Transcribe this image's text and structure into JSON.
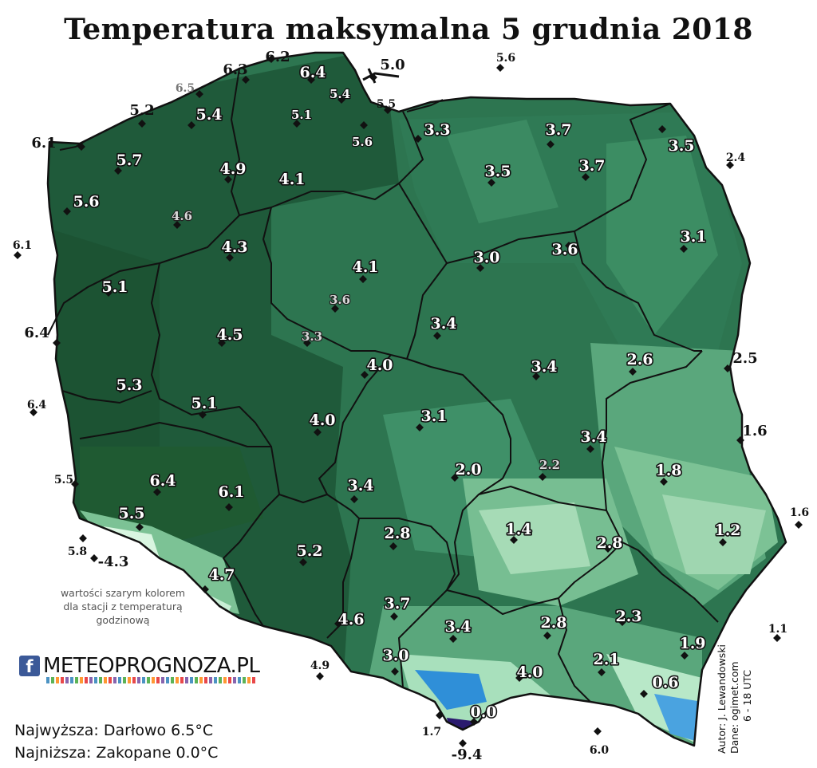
{
  "title": "Temperatura maksymalna 5 grudnia 2018",
  "note": "wartości szarym kolorem dla stacji z temperaturą godzinową",
  "logo": {
    "facebook_glyph": "f",
    "text": "METEOPROGNOZA.PL"
  },
  "stats": {
    "highest": "Najwyższa: Darłowo 6.5°C",
    "lowest": "Najniższa: Zakopane 0.0°C"
  },
  "credits": {
    "author": "Autor: J. Lewandowski",
    "source": "Dane: ogimet.com",
    "hours": "6 - 18 UTC"
  },
  "colors": {
    "dark_green": "#1f5a3a",
    "mid_green": "#2f7a55",
    "light_green": "#5aa77c",
    "pale_green": "#9fd6b0",
    "mountain": "#d8f5e0",
    "snow_blue": "#2f8fd8",
    "border": "#111111"
  },
  "stations": [
    {
      "value": "6.2"
    },
    {
      "value": "6.3"
    },
    {
      "value": "6.4"
    },
    {
      "value": "5.0"
    },
    {
      "value": "5.6"
    },
    {
      "value": "6.5"
    },
    {
      "value": "5.4"
    },
    {
      "value": "5.5"
    },
    {
      "value": "5.2"
    },
    {
      "value": "5.4"
    },
    {
      "value": "5.1"
    },
    {
      "value": "3.3"
    },
    {
      "value": "3.7"
    },
    {
      "value": "6.1"
    },
    {
      "value": "5.6"
    },
    {
      "value": "3.5"
    },
    {
      "value": "5.7"
    },
    {
      "value": "4.9"
    },
    {
      "value": "3.5"
    },
    {
      "value": "3.7"
    },
    {
      "value": "2.4"
    },
    {
      "value": "4.1"
    },
    {
      "value": "5.6"
    },
    {
      "value": "4.6"
    },
    {
      "value": "3.1"
    },
    {
      "value": "6.1"
    },
    {
      "value": "4.3"
    },
    {
      "value": "3.0"
    },
    {
      "value": "3.6"
    },
    {
      "value": "4.1"
    },
    {
      "value": "5.1"
    },
    {
      "value": "3.6"
    },
    {
      "value": "3.4"
    },
    {
      "value": "6.4"
    },
    {
      "value": "4.5"
    },
    {
      "value": "3.3"
    },
    {
      "value": "2.6"
    },
    {
      "value": "2.5"
    },
    {
      "value": "4.0"
    },
    {
      "value": "3.4"
    },
    {
      "value": "5.3"
    },
    {
      "value": "6.4"
    },
    {
      "value": "5.1"
    },
    {
      "value": "3.1"
    },
    {
      "value": "4.0"
    },
    {
      "value": "1.6"
    },
    {
      "value": "3.4"
    },
    {
      "value": "2.0"
    },
    {
      "value": "2.2"
    },
    {
      "value": "1.8"
    },
    {
      "value": "5.5"
    },
    {
      "value": "6.4"
    },
    {
      "value": "3.4"
    },
    {
      "value": "6.1"
    },
    {
      "value": "5.5"
    },
    {
      "value": "1.6"
    },
    {
      "value": "1.4"
    },
    {
      "value": "2.8"
    },
    {
      "value": "1.2"
    },
    {
      "value": "5.8"
    },
    {
      "value": "-4.3"
    },
    {
      "value": "5.2"
    },
    {
      "value": "2.8"
    },
    {
      "value": "4.7"
    },
    {
      "value": "3.7"
    },
    {
      "value": "4.6"
    },
    {
      "value": "3.4"
    },
    {
      "value": "2.8"
    },
    {
      "value": "2.3"
    },
    {
      "value": "1.1"
    },
    {
      "value": "1.9"
    },
    {
      "value": "4.9"
    },
    {
      "value": "3.0"
    },
    {
      "value": "4.0"
    },
    {
      "value": "2.1"
    },
    {
      "value": "0.6"
    },
    {
      "value": "0.0"
    },
    {
      "value": "1.7"
    },
    {
      "value": "-9.4"
    },
    {
      "value": "6.0"
    }
  ]
}
